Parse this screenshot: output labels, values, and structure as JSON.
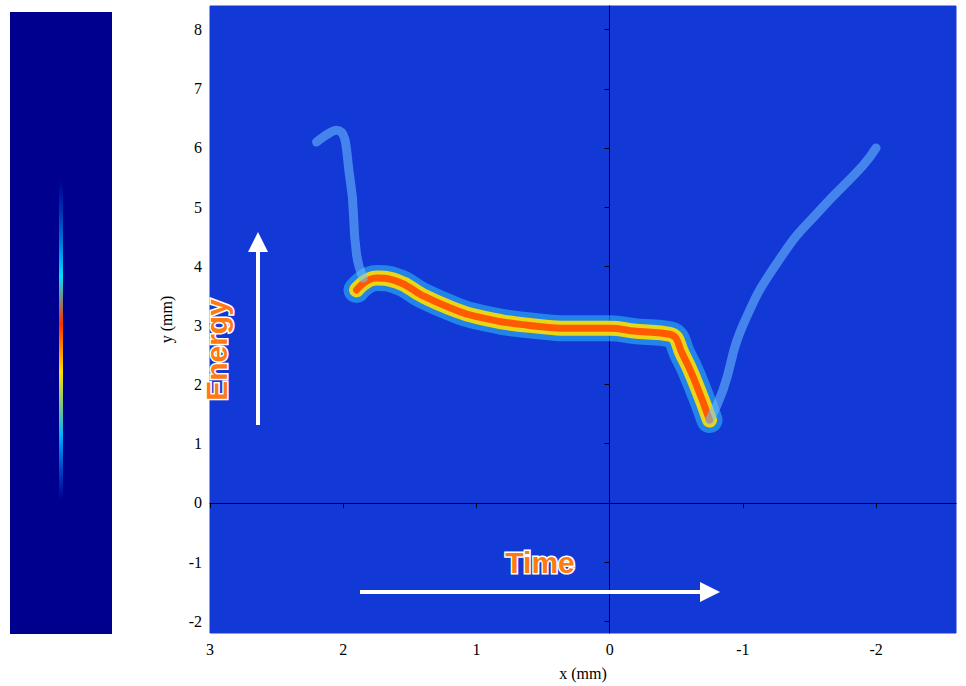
{
  "chart_data": {
    "type": "line",
    "x_label": "x (mm)",
    "y_label": "y (mm)",
    "xlim": [
      3,
      -2.6
    ],
    "ylim": [
      -2.2,
      8.4
    ],
    "xticks": [
      3,
      2,
      1,
      0,
      -1,
      -2
    ],
    "yticks": [
      -2,
      -1,
      0,
      1,
      2,
      3,
      4,
      5,
      6,
      7,
      8
    ],
    "grid": false,
    "annotations": [
      {
        "text": "Energy"
      },
      {
        "text": "Time"
      }
    ],
    "series": [
      {
        "color": "#ff5a00",
        "line_style": "solid",
        "x": [
          1.9,
          1.75,
          1.6,
          1.4,
          1.2,
          1.0,
          0.6,
          0.2,
          0.0,
          -0.2,
          -0.45,
          -0.55,
          -0.65,
          -0.75
        ],
        "values": [
          3.6,
          3.8,
          3.75,
          3.5,
          3.3,
          3.15,
          3.0,
          2.95,
          2.95,
          2.9,
          2.85,
          2.5,
          2.0,
          1.4
        ]
      },
      {
        "color": "#6fc3ff",
        "line_style": "solid",
        "x": [
          2.2,
          2.05,
          1.95,
          1.9,
          1.85
        ],
        "values": [
          6.1,
          6.3,
          5.5,
          4.2,
          3.8
        ]
      },
      {
        "color": "#6fc3ff",
        "line_style": "solid",
        "x": [
          -0.75,
          -0.85,
          -1.0,
          -1.3,
          -1.6,
          -1.9,
          -2.0
        ],
        "values": [
          1.4,
          1.9,
          3.0,
          4.2,
          5.0,
          5.7,
          6.0
        ]
      }
    ]
  }
}
